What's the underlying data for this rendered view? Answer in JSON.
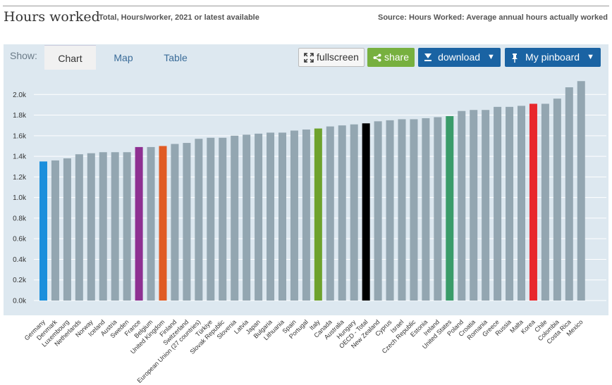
{
  "header": {
    "title": "Hours worked",
    "subtitle": "Total, Hours/worker, 2021 or latest available",
    "source": "Source: Hours Worked: Average annual hours actually worked"
  },
  "toolbar": {
    "show_label": "Show:",
    "tabs": [
      "Chart",
      "Map",
      "Table"
    ],
    "fullscreen_label": "fullscreen",
    "share_label": "share",
    "download_label": "download",
    "pinboard_label": "My pinboard"
  },
  "colors": {
    "default_bar": "#93a6b1",
    "Germany": "#1a8fdc",
    "France": "#8e3092",
    "United Kingdom": "#e05b24",
    "Italy": "#6ea22d",
    "OECD - Total": "#000000",
    "United States": "#3a9c6a",
    "Korea": "#e8282d"
  },
  "chart_data": {
    "type": "bar",
    "title": "Hours worked",
    "xlabel": "",
    "ylabel": "",
    "ylim": [
      0,
      2.2
    ],
    "yticks": [
      "0.0k",
      "0.2k",
      "0.4k",
      "0.6k",
      "0.8k",
      "1.0k",
      "1.2k",
      "1.4k",
      "1.6k",
      "1.8k",
      "2.0k"
    ],
    "categories": [
      "Germany",
      "Denmark",
      "Luxembourg",
      "Netherlands",
      "Norway",
      "Iceland",
      "Austria",
      "Sweden",
      "France",
      "Belgium",
      "United Kingdom",
      "Finland",
      "Switzerland",
      "European Union (27 countries)",
      "Türkiye",
      "Slovak Republic",
      "Slovenia",
      "Latvia",
      "Japan",
      "Bulgaria",
      "Lithuania",
      "Spain",
      "Portugal",
      "Italy",
      "Canada",
      "Australia",
      "Hungary",
      "OECD - Total",
      "New Zealand",
      "Cyprus",
      "Israel",
      "Czech Republic",
      "Estonia",
      "Ireland",
      "United States",
      "Poland",
      "Croatia",
      "Romania",
      "Greece",
      "Russia",
      "Malta",
      "Korea",
      "Chile",
      "Colombia",
      "Costa Rica",
      "Mexico"
    ],
    "values": [
      1.35,
      1.36,
      1.38,
      1.42,
      1.43,
      1.44,
      1.44,
      1.44,
      1.49,
      1.49,
      1.5,
      1.52,
      1.53,
      1.57,
      1.58,
      1.58,
      1.6,
      1.61,
      1.62,
      1.63,
      1.63,
      1.65,
      1.66,
      1.67,
      1.69,
      1.7,
      1.71,
      1.72,
      1.74,
      1.75,
      1.76,
      1.76,
      1.77,
      1.78,
      1.79,
      1.84,
      1.85,
      1.85,
      1.88,
      1.88,
      1.89,
      1.91,
      1.91,
      1.96,
      2.07,
      2.13
    ]
  }
}
